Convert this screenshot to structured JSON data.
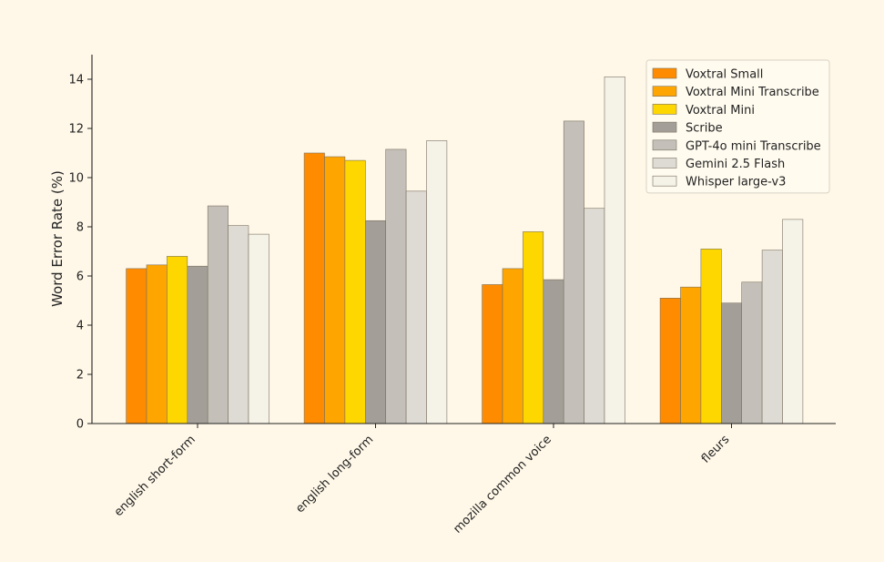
{
  "chart_data": {
    "type": "bar",
    "title": "",
    "xlabel": "",
    "ylabel": "Word Error Rate (%)",
    "ylim": [
      0,
      15
    ],
    "yticks": [
      0,
      2,
      4,
      6,
      8,
      10,
      12,
      14
    ],
    "grid": false,
    "legend_position": "top-right",
    "categories": [
      "english short-form",
      "english long-form",
      "mozilla common voice",
      "fleurs"
    ],
    "series": [
      {
        "name": "Voxtral Small",
        "color": "#ff8c00",
        "values": [
          6.3,
          11.0,
          5.65,
          5.1
        ]
      },
      {
        "name": "Voxtral Mini Transcribe",
        "color": "#ffa500",
        "values": [
          6.45,
          10.85,
          6.3,
          5.55
        ]
      },
      {
        "name": "Voxtral Mini",
        "color": "#ffd700",
        "values": [
          6.8,
          10.7,
          7.8,
          7.1
        ]
      },
      {
        "name": "Scribe",
        "color": "#a39e97",
        "values": [
          6.4,
          8.25,
          5.85,
          4.9
        ]
      },
      {
        "name": "GPT-4o mini Transcribe",
        "color": "#c4c0b9",
        "values": [
          8.85,
          11.15,
          12.3,
          5.75
        ]
      },
      {
        "name": "Gemini 2.5 Flash",
        "color": "#dedbd4",
        "values": [
          8.05,
          9.45,
          8.75,
          7.05
        ]
      },
      {
        "name": "Whisper large-v3",
        "color": "#f5f2e8",
        "values": [
          7.7,
          11.5,
          14.1,
          8.3
        ]
      }
    ]
  }
}
